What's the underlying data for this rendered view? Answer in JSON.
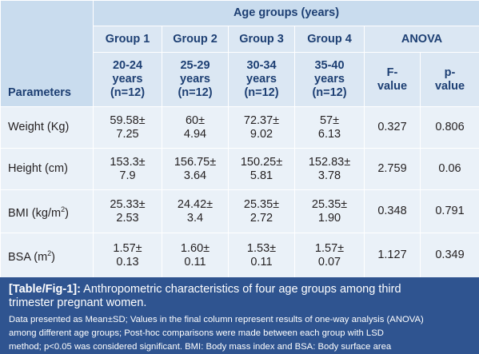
{
  "table": {
    "group_header": "Age groups (years)",
    "parameters_header": "Parameters",
    "groups": [
      {
        "name": "Group 1",
        "range": [
          "20-24",
          "years",
          "(n=12)"
        ]
      },
      {
        "name": "Group 2",
        "range": [
          "25-29",
          "years",
          "(n=12)"
        ]
      },
      {
        "name": "Group 3",
        "range": [
          "30-34",
          "years",
          "(n=12)"
        ]
      },
      {
        "name": "Group 4",
        "range": [
          "35-40",
          "years",
          "(n=12)"
        ]
      }
    ],
    "anova_header": "ANOVA",
    "f_value_header": [
      "F-",
      "value"
    ],
    "p_value_header": [
      "p-",
      "value"
    ],
    "rows": [
      {
        "param": "Weight (Kg)",
        "g1": [
          "59.58±",
          "7.25"
        ],
        "g2": [
          "60±",
          "4.94"
        ],
        "g3": [
          "72.37±",
          "9.02"
        ],
        "g4": [
          "57±",
          "6.13"
        ],
        "f": "0.327",
        "p": "0.806"
      },
      {
        "param": "Height (cm)",
        "g1": [
          "153.3±",
          "7.9"
        ],
        "g2": [
          "156.75±",
          "3.64"
        ],
        "g3": [
          "150.25±",
          "5.81"
        ],
        "g4": [
          "152.83±",
          "3.78"
        ],
        "f": "2.759",
        "p": "0.06"
      },
      {
        "param": "BMI (kg/m",
        "param_sup": "2",
        "param_end": ")",
        "g1": [
          "25.33±",
          "2.53"
        ],
        "g2": [
          "24.42±",
          "3.4"
        ],
        "g3": [
          "25.35±",
          "2.72"
        ],
        "g4": [
          "25.35±",
          "1.90"
        ],
        "f": "0.348",
        "p": "0.791"
      },
      {
        "param": "BSA (m",
        "param_sup": "2",
        "param_end": ")",
        "g1": [
          "1.57±",
          "0.13"
        ],
        "g2": [
          "1.60±",
          "0.11"
        ],
        "g3": [
          "1.53±",
          "0.11"
        ],
        "g4": [
          "1.57±",
          "0.07"
        ],
        "f": "1.127",
        "p": "0.349"
      }
    ]
  },
  "caption": {
    "label": "[Table/Fig-1]:",
    "title_line1": " Anthropometric characteristics of four age groups among third",
    "title_line2": "trimester pregnant women.",
    "note_lines": [
      "Data presented as Mean±SD; Values in the final column represent results of one-way analysis (ANOVA)",
      "among different age groups; Post-hoc comparisons were made between each group with LSD",
      "method; p<0.05 was considered significant. BMI: Body mass index and BSA: Body surface area"
    ]
  },
  "colors": {
    "header_bg": "#c9dcee",
    "subheader_bg": "#dbe7f3",
    "body_bg": "#eaf1f8",
    "header_text": "#1d3f73",
    "caption_bg": "#2f5490"
  }
}
